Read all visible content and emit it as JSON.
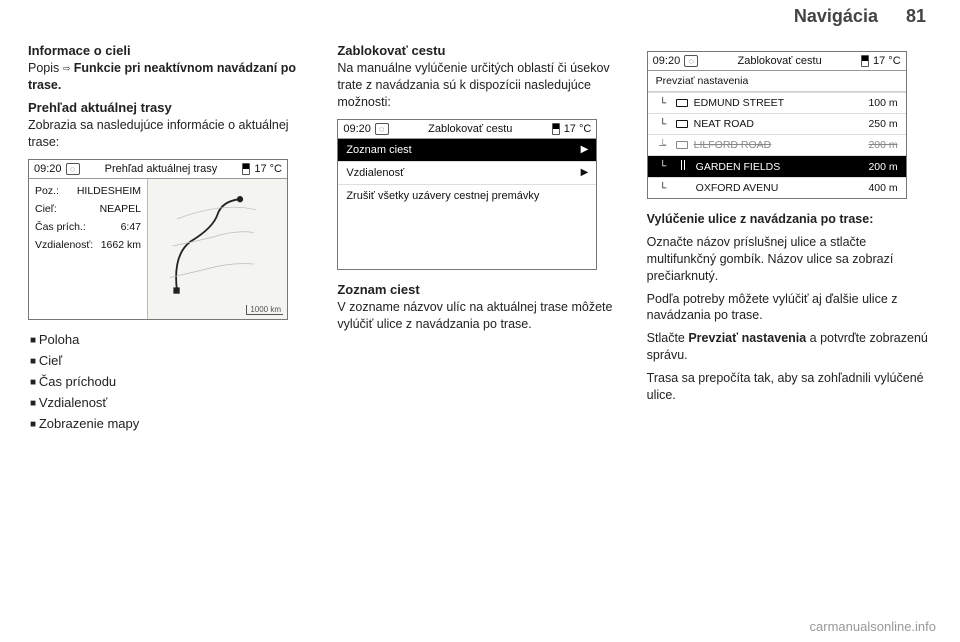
{
  "page": {
    "section": "Navigácia",
    "number": "81"
  },
  "col1": {
    "h1": "Informace o cieli",
    "p1_pre": "Popis ",
    "p1_arrow": "⇨",
    "p1_rest": " Funkcie pri neaktívnom navádzaní po trase.",
    "h2": "Prehľad aktuálnej trasy",
    "p2": "Zobrazia sa nasledujúce informácie o aktuálnej trase:",
    "ui": {
      "time": "09:20",
      "title": "Prehľad aktuálnej trasy",
      "temp": "17 °C",
      "scale": "1000 km",
      "fields": [
        {
          "label": "Poz.:",
          "value": "HILDESHEIM"
        },
        {
          "label": "Cieľ:",
          "value": "NEAPEL"
        },
        {
          "label": "Čas prích.:",
          "value": "6:47"
        },
        {
          "label": "Vzdialenosť:",
          "value": "1662 km"
        }
      ]
    },
    "bullets": [
      "Poloha",
      "Cieľ",
      "Čas príchodu",
      "Vzdialenosť",
      "Zobrazenie mapy"
    ]
  },
  "col2": {
    "h1": "Zablokovať cestu",
    "p1": "Na manuálne vylúčenie určitých oblastí či úsekov trate z navádzania sú k dispozícii nasledujúce možnosti:",
    "ui": {
      "time": "09:20",
      "title": "Zablokovať cestu",
      "temp": "17 °C",
      "items": [
        {
          "label": "Zoznam ciest",
          "selected": true,
          "chevron": true
        },
        {
          "label": "Vzdialenosť",
          "selected": false,
          "chevron": true
        },
        {
          "label": "Zrušiť všetky uzávery cestnej premávky",
          "selected": false,
          "chevron": false
        }
      ]
    },
    "h2": "Zoznam ciest",
    "p2": "V zozname názvov ulíc na aktuálnej trase môžete vylúčiť ulice z navádzania po trase."
  },
  "col3": {
    "ui": {
      "time": "09:20",
      "title": "Zablokovať cestu",
      "temp": "17 °C",
      "note": "Prevziať nastavenia",
      "items": [
        {
          "icon": "box",
          "label": "EDMUND STREET",
          "dist": "100 m",
          "strike": false,
          "selected": false
        },
        {
          "icon": "box",
          "label": "NEAT ROAD",
          "dist": "250 m",
          "strike": false,
          "selected": false
        },
        {
          "icon": "box",
          "label": "LILFORD ROAD",
          "dist": "200 m",
          "strike": true,
          "selected": false
        },
        {
          "icon": "sep",
          "label": "GARDEN FIELDS",
          "dist": "200 m",
          "strike": false,
          "selected": true
        },
        {
          "icon": "bar",
          "label": "OXFORD AVENU",
          "dist": "400 m",
          "strike": false,
          "selected": false
        }
      ]
    },
    "h1": "Vylúčenie ulice z navádzania po trase:",
    "p1": "Označte názov príslušnej ulice a stlačte multifunkčný gombík. Názov ulice sa zobrazí prečiarknutý.",
    "p2": "Podľa potreby môžete vylúčiť aj ďalšie ulice z navádzania po trase.",
    "p3_a": "Stlačte ",
    "p3_b": "Prevziať nastavenia",
    "p3_c": " a potvrďte zobrazenú správu.",
    "p4": "Trasa sa prepočíta tak, aby sa zohľadnili vylúčené ulice."
  },
  "footer": "carmanualsonline.info"
}
